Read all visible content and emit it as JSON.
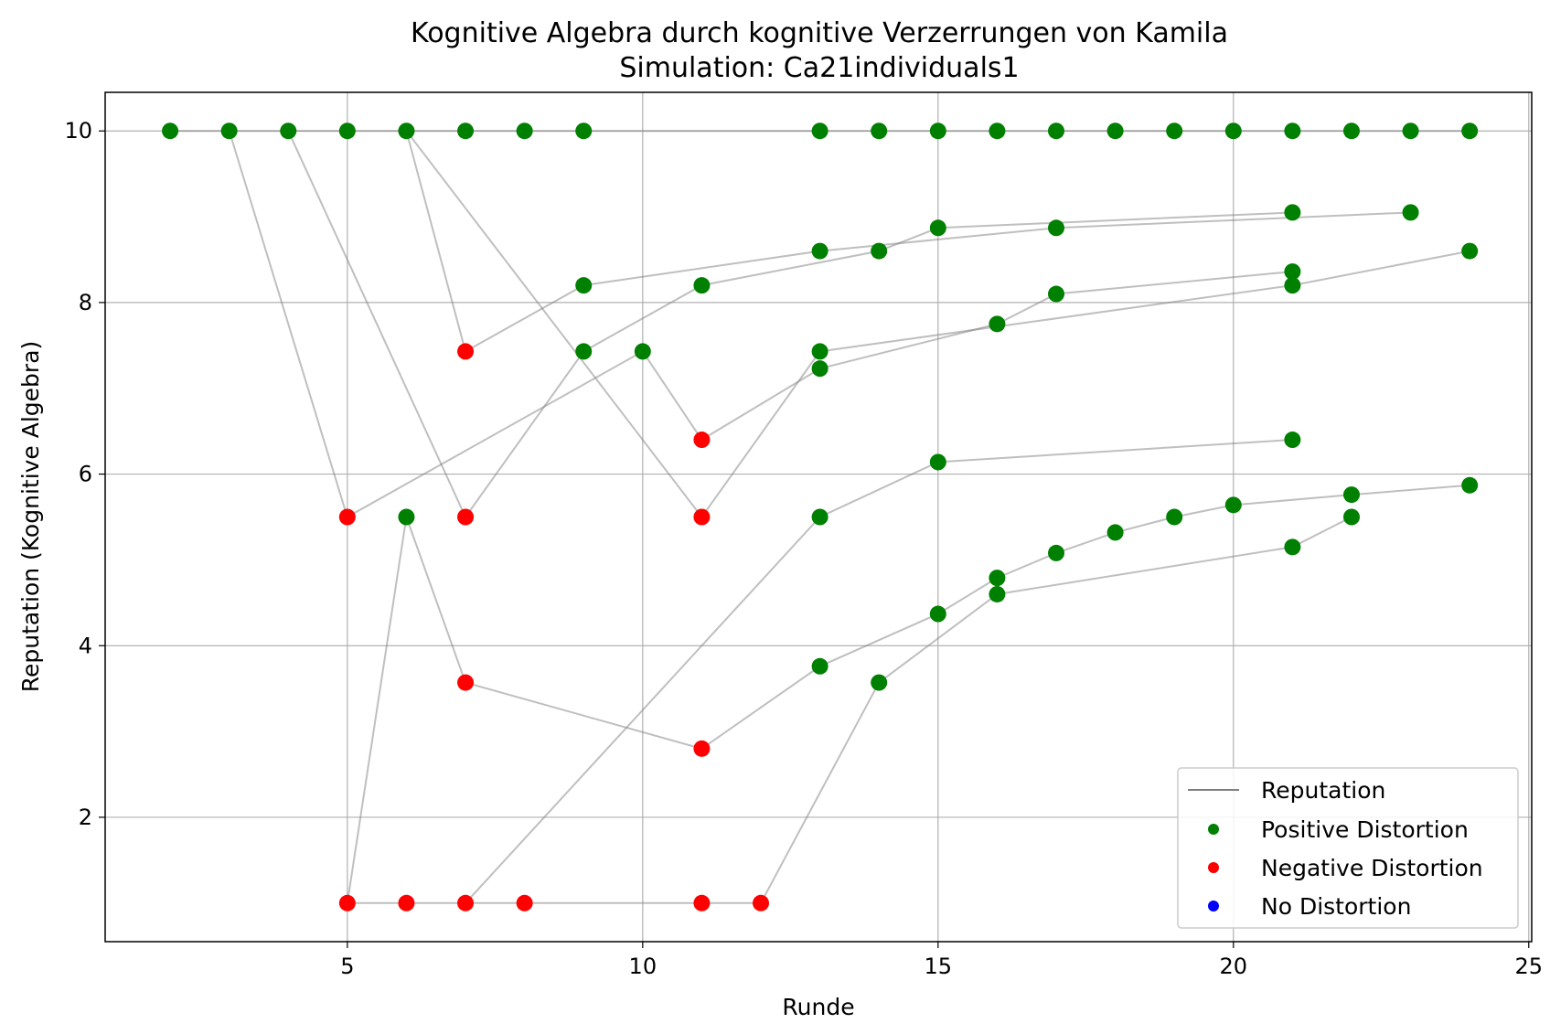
{
  "chart_data": {
    "type": "scatter",
    "title": "Kognitive Algebra durch kognitive Verzerrungen von Kamila",
    "subtitle": "Simulation: Ca21individuals1",
    "xlabel": "Runde",
    "ylabel": "Reputation (Kognitive Algebra)",
    "xlim": [
      0.9,
      25.05
    ],
    "ylim": [
      0.55,
      10.45
    ],
    "xticks": [
      5,
      10,
      15,
      20,
      25
    ],
    "yticks": [
      2,
      4,
      6,
      8,
      10
    ],
    "grid": true,
    "legend_position": "lower-right",
    "legend": [
      {
        "label": "Reputation",
        "kind": "line",
        "color": "#808080"
      },
      {
        "label": "Positive Distortion",
        "kind": "marker",
        "color": "#008000"
      },
      {
        "label": "Negative Distortion",
        "kind": "marker",
        "color": "#ff0000"
      },
      {
        "label": "No Distortion",
        "kind": "marker",
        "color": "#0000ff"
      }
    ],
    "colors": {
      "positive": "#008000",
      "negative": "#ff0000",
      "none": "#0000ff",
      "line": "#808080"
    },
    "lines": [
      [
        [
          2,
          10
        ],
        [
          3,
          10
        ],
        [
          4,
          10
        ],
        [
          5,
          10
        ],
        [
          6,
          10
        ],
        [
          7,
          10
        ],
        [
          8,
          10
        ],
        [
          9,
          10
        ],
        [
          13,
          10
        ],
        [
          14,
          10
        ],
        [
          15,
          10
        ],
        [
          16,
          10
        ],
        [
          17,
          10
        ],
        [
          18,
          10
        ],
        [
          19,
          10
        ],
        [
          20,
          10
        ],
        [
          21,
          10
        ],
        [
          22,
          10
        ],
        [
          23,
          10
        ],
        [
          24,
          10
        ]
      ],
      [
        [
          3,
          10
        ],
        [
          5,
          5.5
        ],
        [
          10,
          7.43
        ],
        [
          11,
          6.4
        ],
        [
          13,
          7.23
        ],
        [
          16,
          7.75
        ],
        [
          17,
          8.1
        ],
        [
          21,
          8.36
        ]
      ],
      [
        [
          4,
          10
        ],
        [
          7,
          5.5
        ],
        [
          9,
          7.43
        ],
        [
          11,
          8.2
        ],
        [
          14,
          8.6
        ],
        [
          15,
          8.87
        ],
        [
          21,
          9.05
        ]
      ],
      [
        [
          6,
          10
        ],
        [
          7,
          7.43
        ],
        [
          9,
          8.2
        ],
        [
          13,
          8.6
        ],
        [
          17,
          8.87
        ],
        [
          23,
          9.05
        ]
      ],
      [
        [
          6,
          10
        ],
        [
          11,
          5.5
        ],
        [
          13,
          7.43
        ],
        [
          21,
          8.2
        ],
        [
          24,
          8.6
        ]
      ],
      [
        [
          5,
          1
        ],
        [
          6,
          5.5
        ],
        [
          7,
          3.57
        ],
        [
          11,
          2.8
        ],
        [
          13,
          3.76
        ],
        [
          15,
          4.37
        ],
        [
          16,
          4.79
        ],
        [
          17,
          5.08
        ],
        [
          18,
          5.32
        ],
        [
          19,
          5.5
        ],
        [
          20,
          5.64
        ],
        [
          22,
          5.76
        ],
        [
          24,
          5.87
        ]
      ],
      [
        [
          5,
          1
        ],
        [
          6,
          1
        ],
        [
          7,
          1
        ],
        [
          8,
          1
        ],
        [
          11,
          1
        ],
        [
          12,
          1
        ],
        [
          14,
          3.57
        ],
        [
          16,
          4.6
        ],
        [
          21,
          5.15
        ],
        [
          22,
          5.5
        ]
      ],
      [
        [
          7,
          1
        ],
        [
          13,
          5.5
        ],
        [
          15,
          6.14
        ],
        [
          21,
          6.4
        ]
      ]
    ],
    "points": [
      {
        "x": 2,
        "y": 10,
        "type": "positive"
      },
      {
        "x": 3,
        "y": 10,
        "type": "positive"
      },
      {
        "x": 4,
        "y": 10,
        "type": "positive"
      },
      {
        "x": 5,
        "y": 10,
        "type": "positive"
      },
      {
        "x": 6,
        "y": 10,
        "type": "positive"
      },
      {
        "x": 7,
        "y": 10,
        "type": "positive"
      },
      {
        "x": 8,
        "y": 10,
        "type": "positive"
      },
      {
        "x": 9,
        "y": 10,
        "type": "positive"
      },
      {
        "x": 13,
        "y": 10,
        "type": "positive"
      },
      {
        "x": 14,
        "y": 10,
        "type": "positive"
      },
      {
        "x": 15,
        "y": 10,
        "type": "positive"
      },
      {
        "x": 16,
        "y": 10,
        "type": "positive"
      },
      {
        "x": 17,
        "y": 10,
        "type": "positive"
      },
      {
        "x": 18,
        "y": 10,
        "type": "positive"
      },
      {
        "x": 19,
        "y": 10,
        "type": "positive"
      },
      {
        "x": 20,
        "y": 10,
        "type": "positive"
      },
      {
        "x": 21,
        "y": 10,
        "type": "positive"
      },
      {
        "x": 22,
        "y": 10,
        "type": "positive"
      },
      {
        "x": 23,
        "y": 10,
        "type": "positive"
      },
      {
        "x": 24,
        "y": 10,
        "type": "positive"
      },
      {
        "x": 21,
        "y": 9.05,
        "type": "positive"
      },
      {
        "x": 23,
        "y": 9.05,
        "type": "positive"
      },
      {
        "x": 15,
        "y": 8.87,
        "type": "positive"
      },
      {
        "x": 17,
        "y": 8.87,
        "type": "positive"
      },
      {
        "x": 13,
        "y": 8.6,
        "type": "positive"
      },
      {
        "x": 14,
        "y": 8.6,
        "type": "positive"
      },
      {
        "x": 24,
        "y": 8.6,
        "type": "positive"
      },
      {
        "x": 21,
        "y": 8.36,
        "type": "positive"
      },
      {
        "x": 9,
        "y": 8.2,
        "type": "positive"
      },
      {
        "x": 11,
        "y": 8.2,
        "type": "positive"
      },
      {
        "x": 21,
        "y": 8.2,
        "type": "positive"
      },
      {
        "x": 17,
        "y": 8.1,
        "type": "positive"
      },
      {
        "x": 16,
        "y": 7.75,
        "type": "positive"
      },
      {
        "x": 7,
        "y": 7.43,
        "type": "negative"
      },
      {
        "x": 9,
        "y": 7.43,
        "type": "positive"
      },
      {
        "x": 10,
        "y": 7.43,
        "type": "positive"
      },
      {
        "x": 13,
        "y": 7.43,
        "type": "positive"
      },
      {
        "x": 13,
        "y": 7.23,
        "type": "positive"
      },
      {
        "x": 11,
        "y": 6.4,
        "type": "negative"
      },
      {
        "x": 21,
        "y": 6.4,
        "type": "positive"
      },
      {
        "x": 15,
        "y": 6.14,
        "type": "positive"
      },
      {
        "x": 24,
        "y": 5.87,
        "type": "positive"
      },
      {
        "x": 22,
        "y": 5.76,
        "type": "positive"
      },
      {
        "x": 20,
        "y": 5.64,
        "type": "positive"
      },
      {
        "x": 5,
        "y": 5.5,
        "type": "negative"
      },
      {
        "x": 7,
        "y": 5.5,
        "type": "negative"
      },
      {
        "x": 11,
        "y": 5.5,
        "type": "negative"
      },
      {
        "x": 6,
        "y": 5.5,
        "type": "positive"
      },
      {
        "x": 13,
        "y": 5.5,
        "type": "positive"
      },
      {
        "x": 19,
        "y": 5.5,
        "type": "positive"
      },
      {
        "x": 22,
        "y": 5.5,
        "type": "positive"
      },
      {
        "x": 18,
        "y": 5.32,
        "type": "positive"
      },
      {
        "x": 21,
        "y": 5.15,
        "type": "positive"
      },
      {
        "x": 17,
        "y": 5.08,
        "type": "positive"
      },
      {
        "x": 16,
        "y": 4.79,
        "type": "positive"
      },
      {
        "x": 16,
        "y": 4.6,
        "type": "positive"
      },
      {
        "x": 15,
        "y": 4.37,
        "type": "positive"
      },
      {
        "x": 13,
        "y": 3.76,
        "type": "positive"
      },
      {
        "x": 14,
        "y": 3.57,
        "type": "positive"
      },
      {
        "x": 7,
        "y": 3.57,
        "type": "negative"
      },
      {
        "x": 11,
        "y": 2.8,
        "type": "negative"
      },
      {
        "x": 5,
        "y": 1,
        "type": "negative"
      },
      {
        "x": 6,
        "y": 1,
        "type": "negative"
      },
      {
        "x": 7,
        "y": 1,
        "type": "negative"
      },
      {
        "x": 8,
        "y": 1,
        "type": "negative"
      },
      {
        "x": 11,
        "y": 1,
        "type": "negative"
      },
      {
        "x": 12,
        "y": 1,
        "type": "negative"
      }
    ]
  }
}
